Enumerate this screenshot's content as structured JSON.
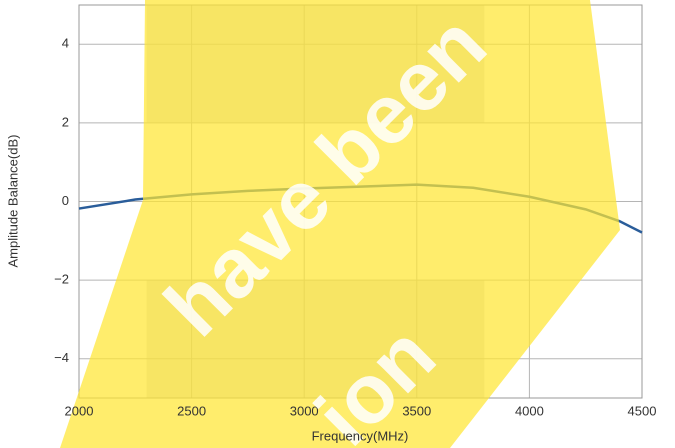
{
  "chart_data": {
    "type": "line",
    "xlabel": "Frequency(MHz)",
    "ylabel": "Amplitude Balance(dB)",
    "x": [
      2000,
      2250,
      2500,
      2750,
      3000,
      3250,
      3500,
      3750,
      4000,
      4250,
      4400,
      4500
    ],
    "values": [
      -0.18,
      0.05,
      0.18,
      0.27,
      0.33,
      0.38,
      0.43,
      0.35,
      0.12,
      -0.2,
      -0.5,
      -0.79
    ],
    "color": "#2a5d9a",
    "xlim": [
      2000,
      4500
    ],
    "xticks": [
      2000,
      2500,
      3000,
      3500,
      4000,
      4500
    ],
    "ylim": [
      -5,
      5
    ],
    "yticks": [
      {
        "value": -4,
        "label": "−4"
      },
      {
        "value": -2,
        "label": "−2"
      },
      0,
      2,
      4
    ],
    "grid": true,
    "shaded_regions": [
      {
        "x": [
          2300,
          3800
        ],
        "y": [
          2,
          5
        ]
      },
      {
        "x": [
          2300,
          3800
        ],
        "y": [
          -5,
          -2
        ]
      }
    ],
    "shade_color": "#e3e3e3",
    "annotations": [
      "have been",
      "ion"
    ]
  }
}
